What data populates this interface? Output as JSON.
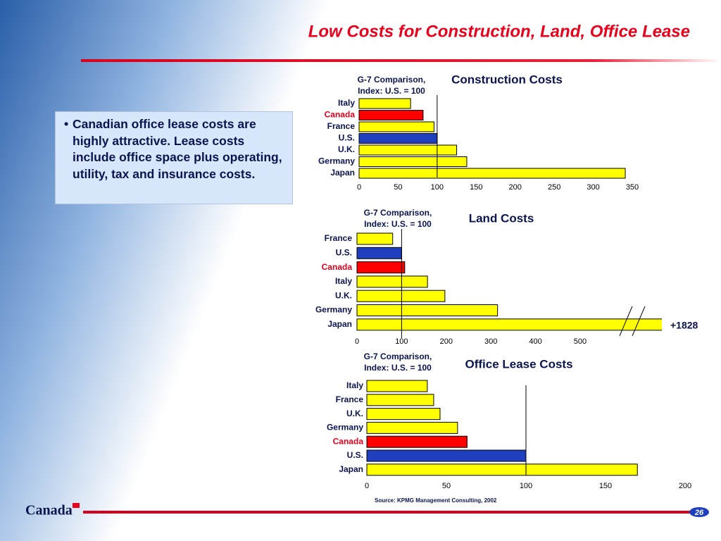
{
  "title": "Low Costs for Construction, Land, Office Lease",
  "bullet": "Canadian office lease costs are highly attractive. Lease costs include office space plus operating, utility, tax and insurance costs.",
  "source": "Source:  KPMG Management Consulting, 2002",
  "logo": "Canada",
  "page_number": "26",
  "chart_data": [
    {
      "type": "bar",
      "orientation": "horizontal",
      "title": "Construction Costs",
      "subtitle": [
        "G-7 Comparison,",
        "Index: U.S. = 100"
      ],
      "categories": [
        "Italy",
        "Canada",
        "France",
        "U.S.",
        "U.K.",
        "Germany",
        "Japan"
      ],
      "values": [
        66,
        82,
        96,
        100,
        125,
        138,
        341
      ],
      "colors": [
        "#ffff00",
        "#ff0000",
        "#ffff00",
        "#1f3fbf",
        "#ffff00",
        "#ffff00",
        "#ffff00"
      ],
      "reference_line": 100,
      "xlim": [
        0,
        350
      ],
      "xticks": [
        0,
        50,
        100,
        150,
        200,
        250,
        300,
        350
      ]
    },
    {
      "type": "bar",
      "orientation": "horizontal",
      "title": "Land Costs",
      "subtitle": [
        "G-7 Comparison,",
        "Index: U.S. = 100"
      ],
      "categories": [
        "France",
        "U.S.",
        "Canada",
        "Italy",
        "U.K.",
        "Germany",
        "Japan"
      ],
      "values": [
        80,
        100,
        107,
        158,
        197,
        315,
        1828
      ],
      "value_labels": [
        null,
        null,
        null,
        null,
        null,
        null,
        "+1828"
      ],
      "colors": [
        "#ffff00",
        "#1f3fbf",
        "#ff0000",
        "#ffff00",
        "#ffff00",
        "#ffff00",
        "#ffff00"
      ],
      "reference_line": 100,
      "axis_break": true,
      "xlim": [
        0,
        680
      ],
      "xticks": [
        0,
        100,
        200,
        300,
        400,
        500
      ]
    },
    {
      "type": "bar",
      "orientation": "horizontal",
      "title": "Office Lease Costs",
      "subtitle": [
        "G-7 Comparison,",
        "Index: U.S. = 100"
      ],
      "categories": [
        "Italy",
        "France",
        "U.K.",
        "Germany",
        "Canada",
        "U.S.",
        "Japan"
      ],
      "values": [
        38,
        42,
        46,
        57,
        63,
        100,
        170
      ],
      "colors": [
        "#ffff00",
        "#ffff00",
        "#ffff00",
        "#ffff00",
        "#ff0000",
        "#1f3fbf",
        "#ffff00"
      ],
      "reference_line": 100,
      "xlim": [
        0,
        200
      ],
      "xticks": [
        0,
        50,
        100,
        150,
        200
      ]
    }
  ]
}
